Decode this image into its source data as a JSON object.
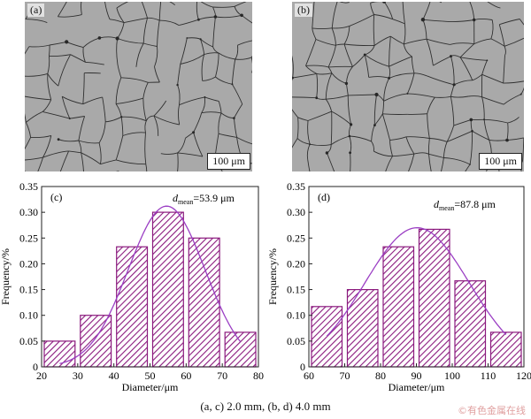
{
  "micrographs": [
    {
      "label": "(a)",
      "scale_text": "100 μm"
    },
    {
      "label": "(b)",
      "scale_text": "100 μm"
    }
  ],
  "caption": "(a, c) 2.0 mm, (b, d) 4.0 mm",
  "watermark": "©有色金属在线",
  "hatch_color": "#8b1a7e",
  "curve_color": "#9b3fc4",
  "chart_data": [
    {
      "type": "bar",
      "panel": "(c)",
      "annotation": "d",
      "annotation_sub": "mean",
      "annotation_value": "=53.9 μm",
      "xlabel": "Diameter/μm",
      "ylabel": "Frequency/%",
      "xlim": [
        20,
        80
      ],
      "ylim": [
        0,
        0.35
      ],
      "xticks": [
        20,
        30,
        40,
        50,
        60,
        70,
        80
      ],
      "yticks": [
        "0",
        "0.05",
        "0.10",
        "0.15",
        "0.20",
        "0.25",
        "0.30",
        "0.35"
      ],
      "bins": [
        {
          "x0": 20,
          "x1": 30,
          "value": 0.05
        },
        {
          "x0": 30,
          "x1": 40,
          "value": 0.1
        },
        {
          "x0": 40,
          "x1": 50,
          "value": 0.233
        },
        {
          "x0": 50,
          "x1": 60,
          "value": 0.3
        },
        {
          "x0": 60,
          "x1": 70,
          "value": 0.25
        },
        {
          "x0": 70,
          "x1": 80,
          "value": 0.067
        }
      ],
      "fit": {
        "mean": 54.6,
        "sd": 10.6,
        "peak": 0.312,
        "x_from": 25,
        "x_to": 75
      }
    },
    {
      "type": "bar",
      "panel": "(d)",
      "annotation": "d",
      "annotation_sub": "mean",
      "annotation_value": "=87.8 μm",
      "xlabel": "Diameter/μm",
      "ylabel": "Frequency/%",
      "xlim": [
        60,
        120
      ],
      "ylim": [
        0,
        0.35
      ],
      "xticks": [
        60,
        70,
        80,
        90,
        100,
        110,
        120
      ],
      "yticks": [
        "0",
        "0.05",
        "0.10",
        "0.15",
        "0.20",
        "0.25",
        "0.30",
        "0.35"
      ],
      "bins": [
        {
          "x0": 60,
          "x1": 70,
          "value": 0.117
        },
        {
          "x0": 70,
          "x1": 80,
          "value": 0.15
        },
        {
          "x0": 80,
          "x1": 90,
          "value": 0.233
        },
        {
          "x0": 90,
          "x1": 100,
          "value": 0.267
        },
        {
          "x0": 100,
          "x1": 110,
          "value": 0.167
        },
        {
          "x0": 110,
          "x1": 120,
          "value": 0.067
        }
      ],
      "fit": {
        "mean": 90.2,
        "sd": 14.5,
        "peak": 0.27,
        "x_from": 65,
        "x_to": 115
      }
    }
  ]
}
